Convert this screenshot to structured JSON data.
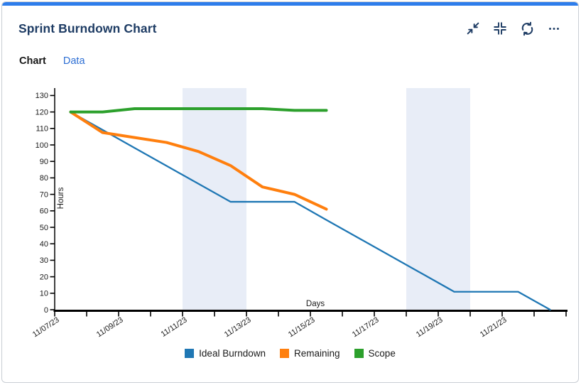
{
  "widget": {
    "title": "Sprint Burndown Chart",
    "accent_color": "#2e7deb",
    "icon_color": "#1e3c64",
    "toolbar_icons": [
      "collapse-arrows-icon",
      "contract-corners-icon",
      "refresh-icon",
      "ellipsis-icon"
    ]
  },
  "tabs": [
    {
      "label": "Chart",
      "active": true
    },
    {
      "label": "Data",
      "active": false
    }
  ],
  "chart_data": {
    "type": "line",
    "xlabel": "Days",
    "ylabel": "Hours",
    "x_tick_count": 17,
    "x_label_step": 2,
    "x_tick_labels": [
      "11/07/23",
      "11/09/23",
      "11/11/23",
      "11/13/23",
      "11/15/23",
      "11/17/23",
      "11/19/23",
      "11/21/23"
    ],
    "y_tick_step": 10,
    "y_tick_max": 130,
    "ylim": [
      0,
      134.5
    ],
    "grid": false,
    "weekend_bands": [
      [
        4,
        6
      ],
      [
        11,
        13
      ]
    ],
    "band_color": "#e8edf7",
    "axis_color": "#000000",
    "legend_position": "bottom",
    "series": [
      {
        "name": "Ideal Burndown",
        "color": "#1f77b4",
        "width": 2.3,
        "values": [
          120,
          109.1,
          98.2,
          87.3,
          76.4,
          65.5,
          65.5,
          65.5,
          54.5,
          43.6,
          32.7,
          21.8,
          10.9,
          10.9,
          10.9,
          0
        ]
      },
      {
        "name": "Remaining",
        "color": "#ff7f0e",
        "width": 4,
        "values": [
          120,
          107.5,
          104.5,
          101.5,
          96,
          87.5,
          74.5,
          70,
          61
        ]
      },
      {
        "name": "Scope",
        "color": "#2ca02c",
        "width": 4,
        "values": [
          120,
          120,
          122,
          122,
          122,
          122,
          122,
          121,
          121
        ]
      }
    ]
  }
}
